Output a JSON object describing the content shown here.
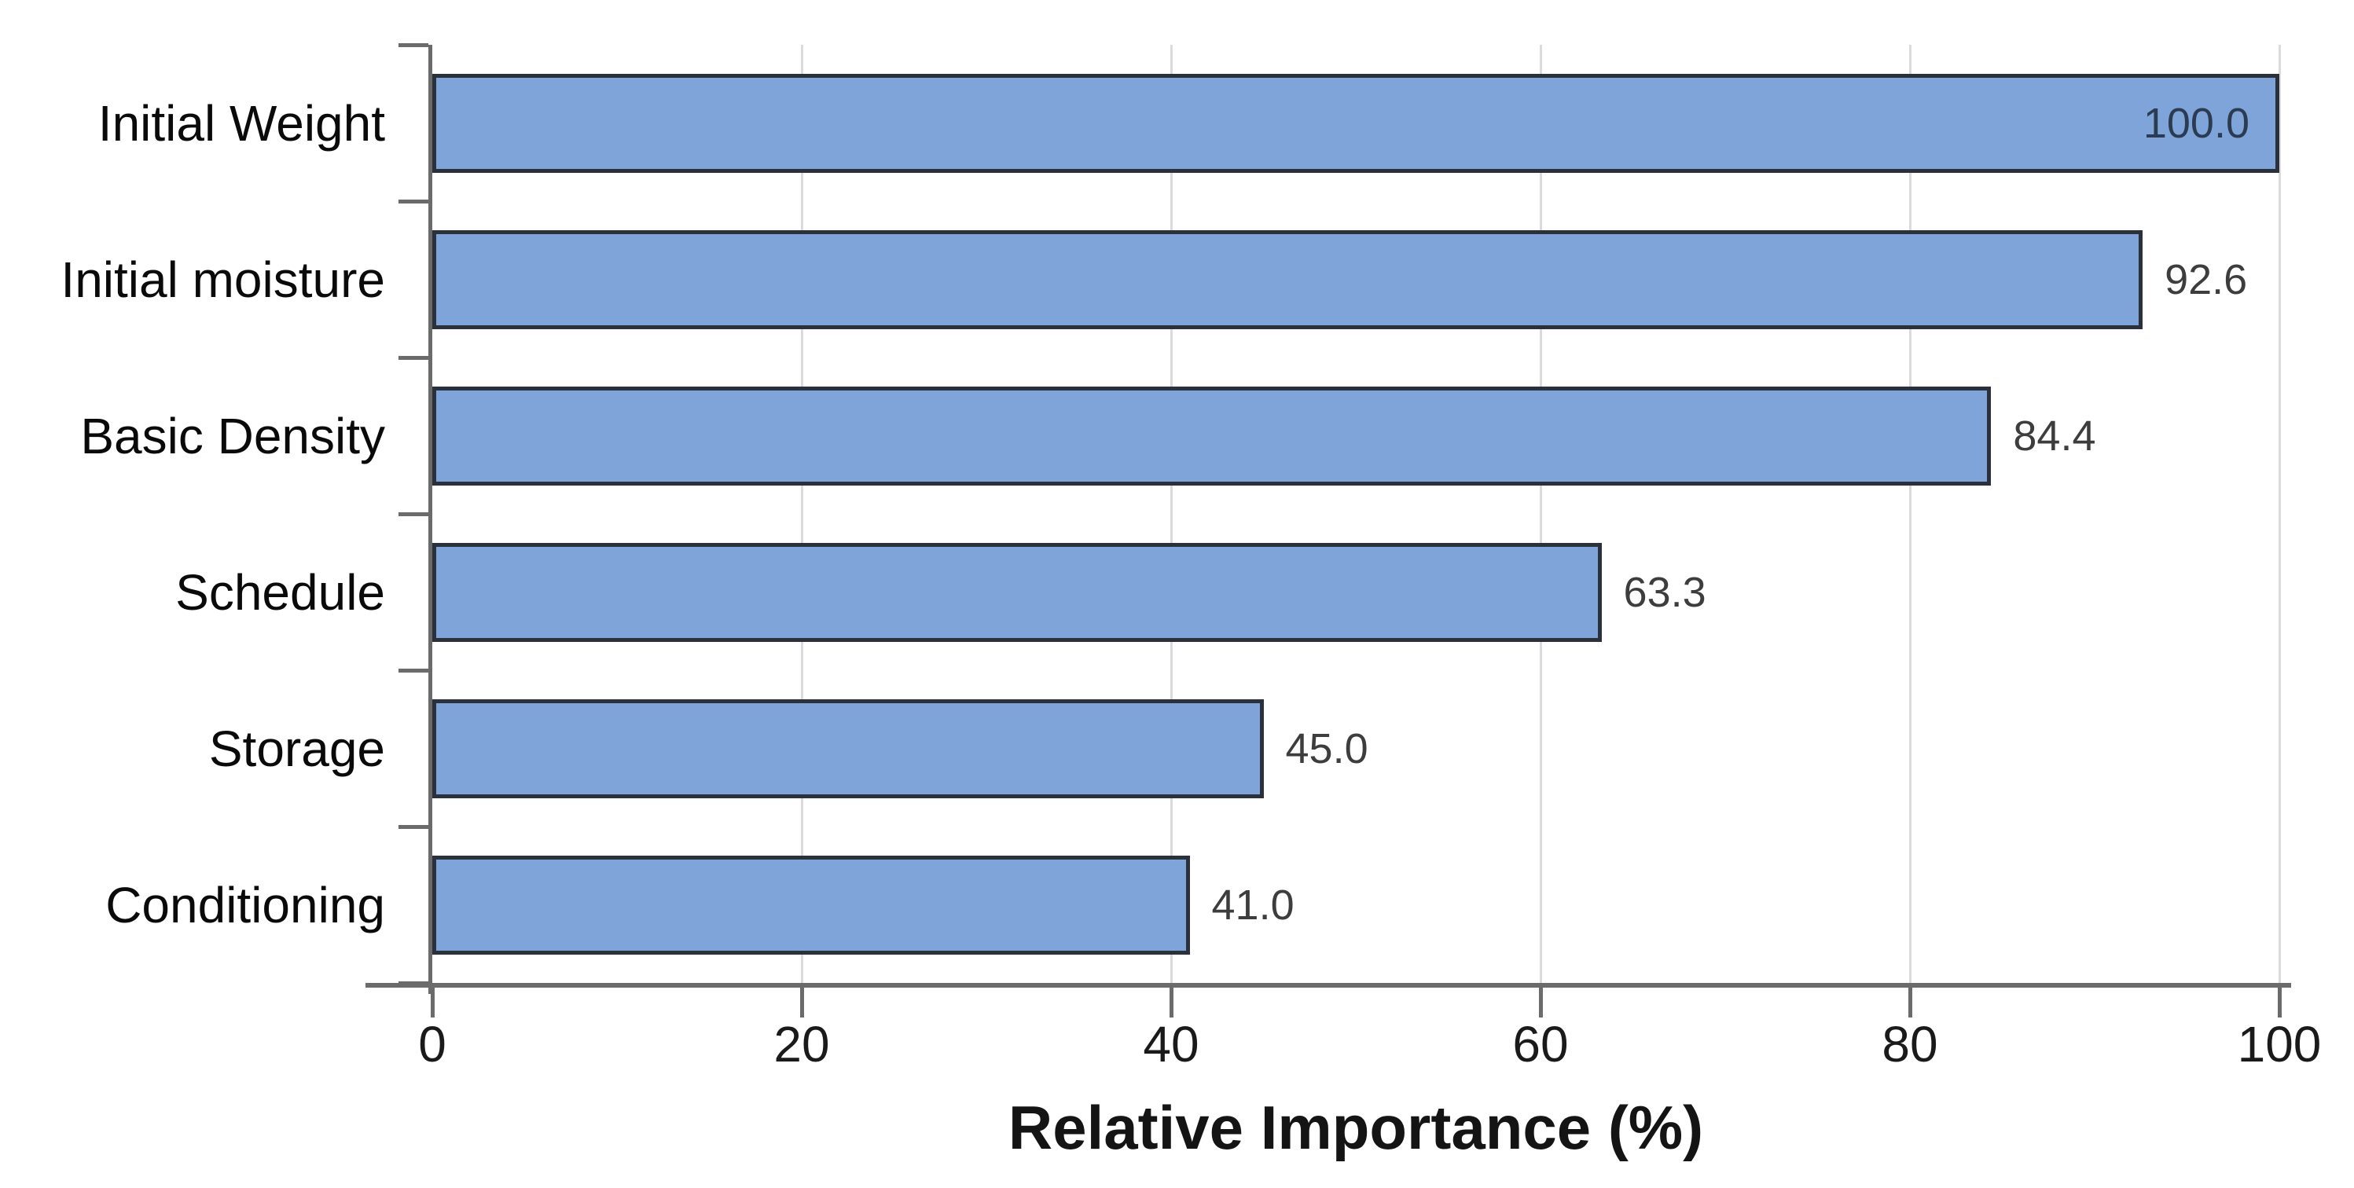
{
  "chart_data": {
    "type": "bar",
    "orientation": "horizontal",
    "title": "",
    "xlabel": "Relative Importance (%)",
    "ylabel": "",
    "categories": [
      "Initial Weight",
      "Initial moisture",
      "Basic Density",
      "Schedule",
      "Storage",
      "Conditioning"
    ],
    "values": [
      100.0,
      92.6,
      84.4,
      63.3,
      45.0,
      41.0
    ],
    "value_labels": [
      "100.0",
      "92.6",
      "84.4",
      "63.3",
      "45.0",
      "41.0"
    ],
    "value_label_placement": [
      "inside",
      "outside",
      "outside",
      "outside",
      "outside",
      "outside"
    ],
    "xlim": [
      0,
      100
    ],
    "xticks": [
      0,
      20,
      40,
      60,
      80,
      100
    ],
    "xtick_labels": [
      "0",
      "20",
      "40",
      "60",
      "80",
      "100"
    ],
    "grid": "vertical-major",
    "legend": "none",
    "colors": {
      "bar_fill": "#7ea4d9",
      "bar_border": "#2b313b",
      "gridline": "#dbdbdb",
      "axis": "#6b6b6b",
      "tick_label": "#1a1a1a",
      "category_label": "#0a0a0a",
      "value_label": "#3d3d3d",
      "value_label_inside": "#2b3b52",
      "axis_title": "#141414",
      "background": "#ffffff"
    }
  }
}
